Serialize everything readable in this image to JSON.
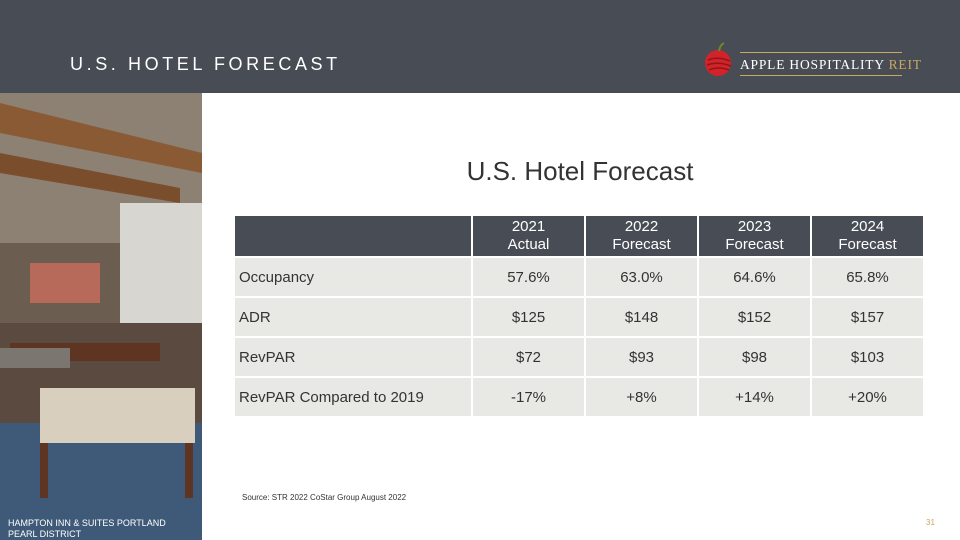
{
  "header": {
    "title": "U.S. HOTEL FORECAST",
    "logo": {
      "name": "APPLE HOSPITALITY",
      "suffix": "REIT"
    }
  },
  "photo_caption": [
    "HAMPTON INN & SUITES PORTLAND",
    "PEARL DISTRICT"
  ],
  "title": "U.S. Hotel Forecast",
  "table": {
    "columns": [
      [],
      [
        "2021",
        "Actual"
      ],
      [
        "2022",
        "Forecast"
      ],
      [
        "2023",
        "Forecast"
      ],
      [
        "2024",
        "Forecast"
      ]
    ],
    "rows": [
      [
        "Occupancy",
        "57.6%",
        "63.0%",
        "64.6%",
        "65.8%"
      ],
      [
        "ADR",
        "$125",
        "$148",
        "$152",
        "$157"
      ],
      [
        "RevPAR",
        "$72",
        "$93",
        "$98",
        "$103"
      ],
      [
        "RevPAR Compared to 2019",
        "-17%",
        "+8%",
        "+14%",
        "+20%"
      ]
    ]
  },
  "source": "Source: STR 2022 CoStar Group August 2022",
  "page_number": "31"
}
